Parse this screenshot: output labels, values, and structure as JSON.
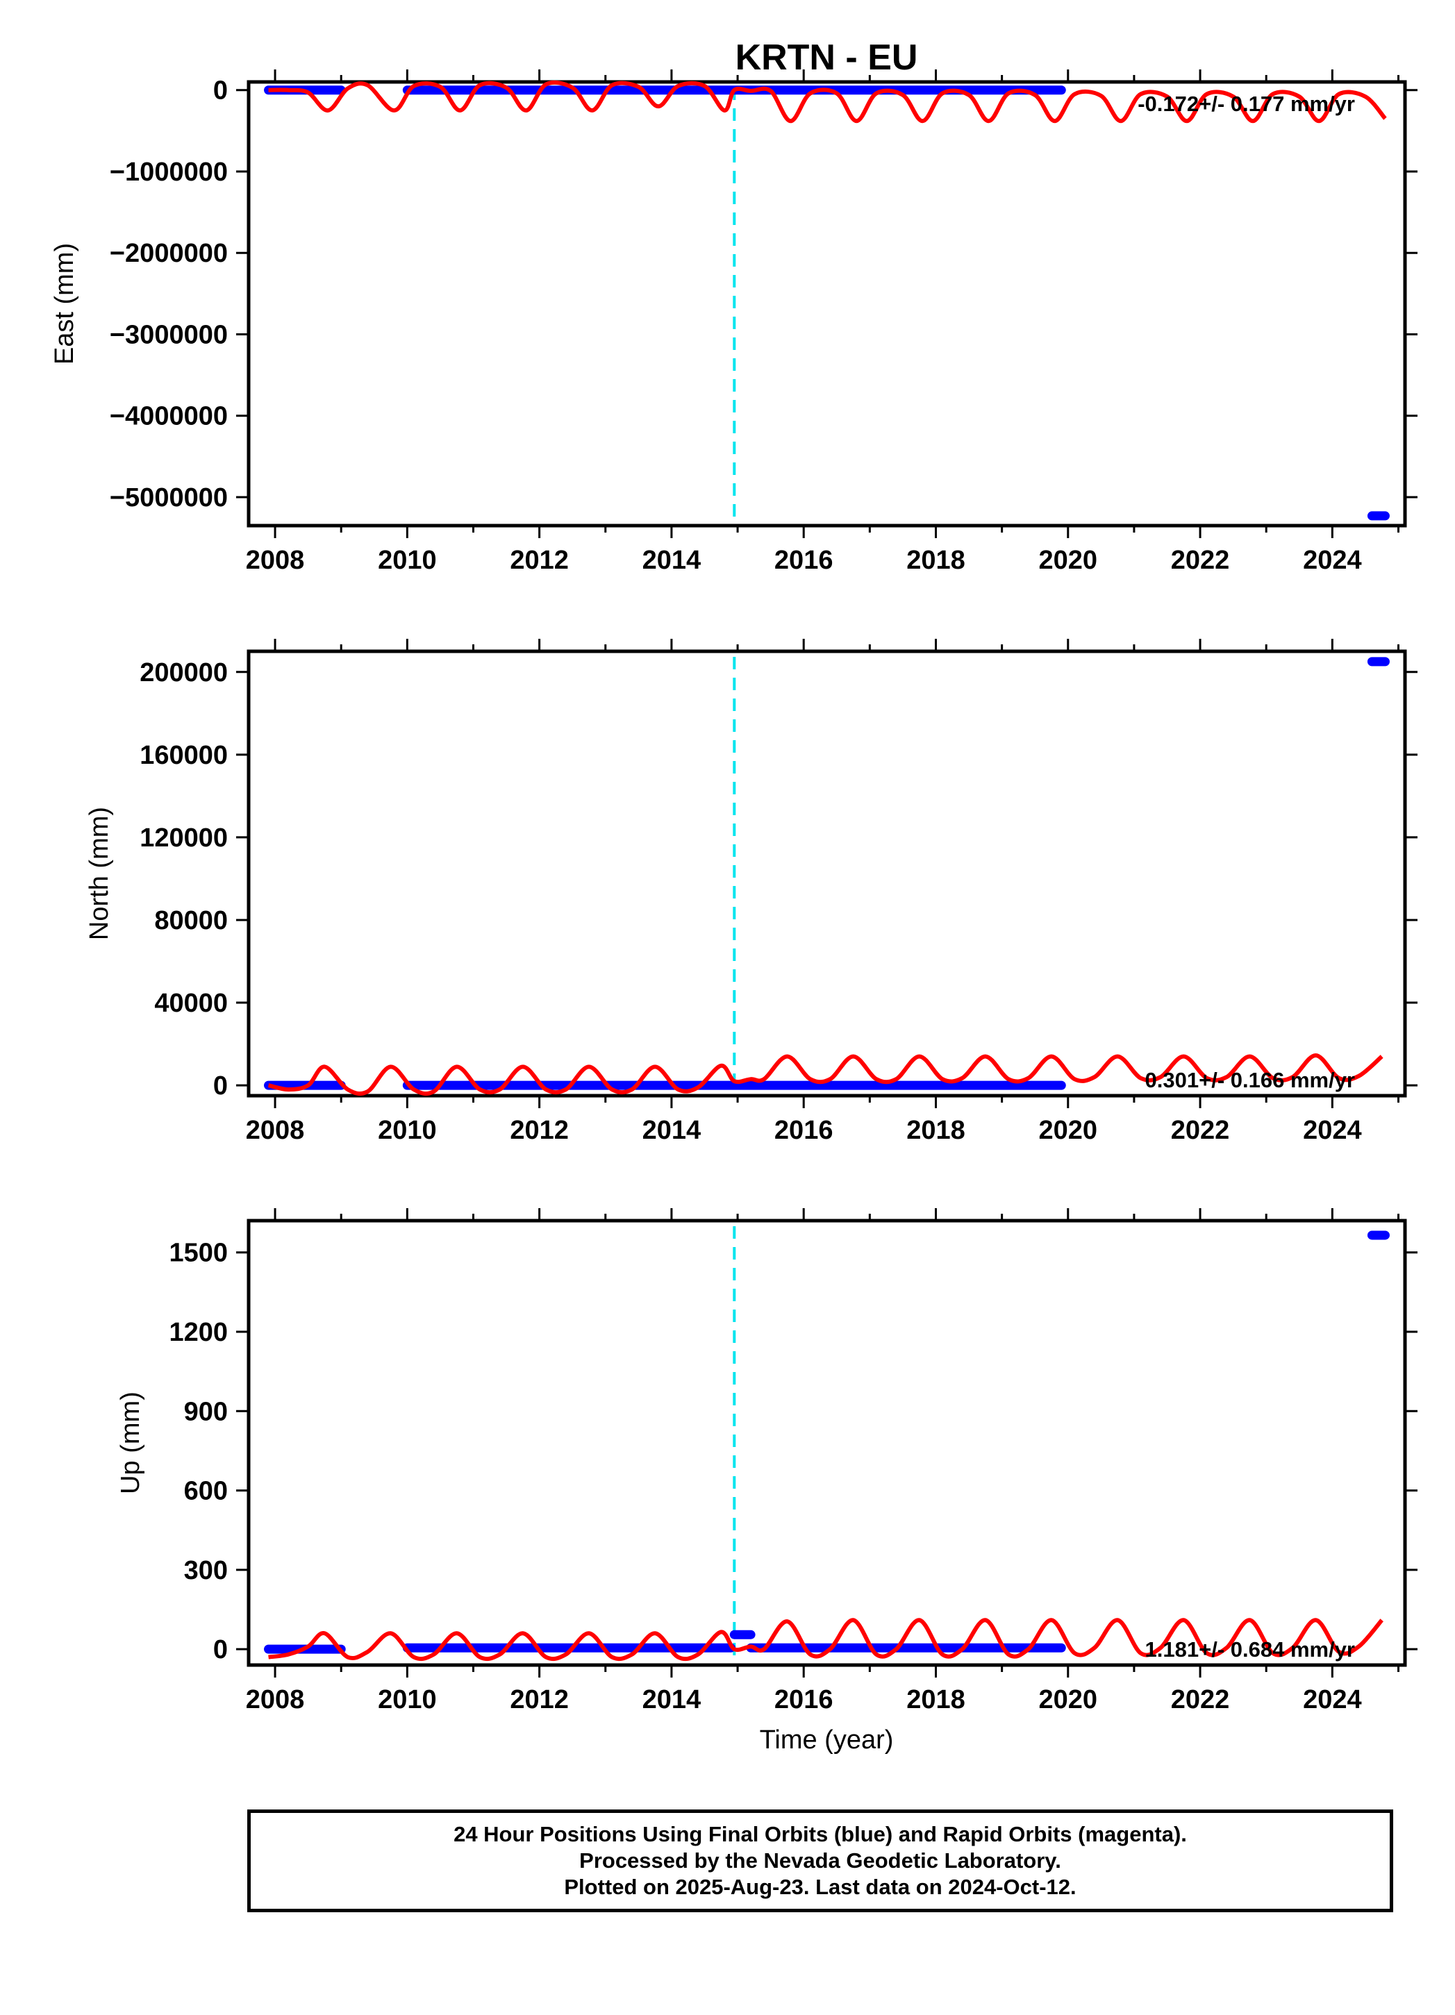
{
  "title": "KRTN - EU",
  "xlabel": "Time (year)",
  "colors": {
    "final": "#0000ff",
    "model": "#ff0000",
    "break": "#00e5ee",
    "frame": "#000000"
  },
  "footer": {
    "line1": "24 Hour Positions Using Final Orbits (blue) and Rapid Orbits (magenta).",
    "line2": "Processed by the Nevada Geodetic Laboratory.",
    "line3": "Plotted on 2025-Aug-23. Last data on 2024-Oct-12."
  },
  "chart_data": [
    {
      "type": "scatter",
      "name": "east",
      "ylabel": "East (mm)",
      "rate_label": "-0.172+/- 0.177 mm/yr",
      "xlim": [
        2007.6,
        2025.1
      ],
      "ylim": [
        -5350000,
        100000
      ],
      "yticks": [
        0,
        -1000000,
        -2000000,
        -3000000,
        -4000000,
        -5000000
      ],
      "ytick_labels": [
        "0",
        "−1000000",
        "−2000000",
        "−3000000",
        "−4000000",
        "−5000000"
      ],
      "xticks": [
        2008,
        2010,
        2012,
        2014,
        2016,
        2018,
        2020,
        2022,
        2024
      ],
      "break_year": 2014.95,
      "final_segments": [
        {
          "x0": 2007.9,
          "x1": 2009.0,
          "y": 0
        },
        {
          "x0": 2010.0,
          "x1": 2019.9,
          "y": 0
        },
        {
          "x0": 2024.6,
          "x1": 2024.8,
          "y": -5230000
        }
      ],
      "model_curve": [
        [
          2007.9,
          0
        ],
        [
          2008.2,
          0
        ],
        [
          2008.5,
          -30000
        ],
        [
          2008.8,
          -250000
        ],
        [
          2009.1,
          20000
        ],
        [
          2009.4,
          60000
        ],
        [
          2009.8,
          -250000
        ],
        [
          2010.1,
          50000
        ],
        [
          2010.5,
          40000
        ],
        [
          2010.8,
          -250000
        ],
        [
          2011.1,
          60000
        ],
        [
          2011.5,
          30000
        ],
        [
          2011.8,
          -250000
        ],
        [
          2012.1,
          70000
        ],
        [
          2012.5,
          30000
        ],
        [
          2012.8,
          -250000
        ],
        [
          2013.1,
          60000
        ],
        [
          2013.5,
          40000
        ],
        [
          2013.8,
          -200000
        ],
        [
          2014.1,
          50000
        ],
        [
          2014.5,
          50000
        ],
        [
          2014.8,
          -250000
        ],
        [
          2014.95,
          0
        ],
        [
          2015.2,
          -10000
        ],
        [
          2015.5,
          -10000
        ],
        [
          2015.8,
          -380000
        ],
        [
          2016.1,
          -40000
        ],
        [
          2016.5,
          -40000
        ],
        [
          2016.8,
          -380000
        ],
        [
          2017.1,
          -40000
        ],
        [
          2017.5,
          -60000
        ],
        [
          2017.8,
          -380000
        ],
        [
          2018.1,
          -40000
        ],
        [
          2018.5,
          -60000
        ],
        [
          2018.8,
          -380000
        ],
        [
          2019.1,
          -40000
        ],
        [
          2019.5,
          -60000
        ],
        [
          2019.8,
          -380000
        ],
        [
          2020.1,
          -50000
        ],
        [
          2020.5,
          -70000
        ],
        [
          2020.8,
          -380000
        ],
        [
          2021.1,
          -50000
        ],
        [
          2021.5,
          -80000
        ],
        [
          2021.8,
          -380000
        ],
        [
          2022.1,
          -50000
        ],
        [
          2022.5,
          -80000
        ],
        [
          2022.8,
          -380000
        ],
        [
          2023.1,
          -50000
        ],
        [
          2023.5,
          -80000
        ],
        [
          2023.8,
          -380000
        ],
        [
          2024.1,
          -50000
        ],
        [
          2024.5,
          -80000
        ],
        [
          2024.8,
          -350000
        ]
      ]
    },
    {
      "type": "scatter",
      "name": "north",
      "ylabel": "North (mm)",
      "rate_label": "0.301+/- 0.166 mm/yr",
      "xlim": [
        2007.6,
        2025.1
      ],
      "ylim": [
        -5000,
        210000
      ],
      "yticks": [
        0,
        40000,
        80000,
        120000,
        160000,
        200000
      ],
      "ytick_labels": [
        "0",
        "40000",
        "80000",
        "120000",
        "160000",
        "200000"
      ],
      "xticks": [
        2008,
        2010,
        2012,
        2014,
        2016,
        2018,
        2020,
        2022,
        2024
      ],
      "break_year": 2014.95,
      "final_segments": [
        {
          "x0": 2007.9,
          "x1": 2009.0,
          "y": 0
        },
        {
          "x0": 2010.0,
          "x1": 2019.9,
          "y": 0
        },
        {
          "x0": 2024.6,
          "x1": 2024.8,
          "y": 205000
        }
      ],
      "model_curve": [
        [
          2007.9,
          0
        ],
        [
          2008.2,
          -2000
        ],
        [
          2008.5,
          0
        ],
        [
          2008.75,
          9000
        ],
        [
          2009.1,
          -2000
        ],
        [
          2009.4,
          -3000
        ],
        [
          2009.75,
          9000
        ],
        [
          2010.1,
          -2000
        ],
        [
          2010.4,
          -3000
        ],
        [
          2010.75,
          9000
        ],
        [
          2011.1,
          -2000
        ],
        [
          2011.4,
          -2000
        ],
        [
          2011.75,
          9000
        ],
        [
          2012.1,
          -2000
        ],
        [
          2012.4,
          -2000
        ],
        [
          2012.75,
          9000
        ],
        [
          2013.1,
          -2000
        ],
        [
          2013.4,
          -2000
        ],
        [
          2013.75,
          9000
        ],
        [
          2014.1,
          -2000
        ],
        [
          2014.4,
          -1000
        ],
        [
          2014.75,
          9500
        ],
        [
          2014.95,
          2000
        ],
        [
          2015.2,
          3000
        ],
        [
          2015.4,
          3000
        ],
        [
          2015.75,
          14000
        ],
        [
          2016.1,
          3000
        ],
        [
          2016.4,
          3000
        ],
        [
          2016.75,
          14000
        ],
        [
          2017.1,
          3000
        ],
        [
          2017.4,
          3000
        ],
        [
          2017.75,
          14000
        ],
        [
          2018.1,
          3000
        ],
        [
          2018.4,
          3500
        ],
        [
          2018.75,
          14000
        ],
        [
          2019.1,
          3000
        ],
        [
          2019.4,
          3500
        ],
        [
          2019.75,
          14000
        ],
        [
          2020.1,
          3000
        ],
        [
          2020.4,
          4000
        ],
        [
          2020.75,
          14000
        ],
        [
          2021.1,
          3500
        ],
        [
          2021.4,
          4000
        ],
        [
          2021.75,
          14000
        ],
        [
          2022.1,
          3500
        ],
        [
          2022.4,
          4000
        ],
        [
          2022.75,
          14000
        ],
        [
          2023.1,
          3500
        ],
        [
          2023.4,
          4000
        ],
        [
          2023.75,
          14500
        ],
        [
          2024.1,
          3500
        ],
        [
          2024.4,
          4500
        ],
        [
          2024.75,
          14000
        ]
      ]
    },
    {
      "type": "scatter",
      "name": "up",
      "ylabel": "Up (mm)",
      "rate_label": "1.181+/- 0.684 mm/yr",
      "xlim": [
        2007.6,
        2025.1
      ],
      "ylim": [
        -60,
        1620
      ],
      "yticks": [
        0,
        300,
        600,
        900,
        1200,
        1500
      ],
      "ytick_labels": [
        "0",
        "300",
        "600",
        "900",
        "1200",
        "1500"
      ],
      "xticks": [
        2008,
        2010,
        2012,
        2014,
        2016,
        2018,
        2020,
        2022,
        2024
      ],
      "break_year": 2014.95,
      "final_segments": [
        {
          "x0": 2007.9,
          "x1": 2009.0,
          "y": 0
        },
        {
          "x0": 2010.0,
          "x1": 2014.9,
          "y": 5
        },
        {
          "x0": 2014.95,
          "x1": 2015.2,
          "y": 55
        },
        {
          "x0": 2015.2,
          "x1": 2019.9,
          "y": 5
        },
        {
          "x0": 2024.6,
          "x1": 2024.8,
          "y": 1565
        }
      ],
      "model_curve": [
        [
          2007.9,
          -30
        ],
        [
          2008.2,
          -20
        ],
        [
          2008.5,
          10
        ],
        [
          2008.75,
          60
        ],
        [
          2009.1,
          -30
        ],
        [
          2009.4,
          -10
        ],
        [
          2009.75,
          60
        ],
        [
          2010.1,
          -30
        ],
        [
          2010.4,
          -20
        ],
        [
          2010.75,
          60
        ],
        [
          2011.1,
          -30
        ],
        [
          2011.4,
          -20
        ],
        [
          2011.75,
          60
        ],
        [
          2012.1,
          -30
        ],
        [
          2012.4,
          -20
        ],
        [
          2012.75,
          60
        ],
        [
          2013.1,
          -30
        ],
        [
          2013.4,
          -20
        ],
        [
          2013.75,
          60
        ],
        [
          2014.1,
          -30
        ],
        [
          2014.4,
          -20
        ],
        [
          2014.75,
          65
        ],
        [
          2014.95,
          0
        ],
        [
          2015.2,
          10
        ],
        [
          2015.4,
          0
        ],
        [
          2015.75,
          105
        ],
        [
          2016.1,
          -20
        ],
        [
          2016.4,
          0
        ],
        [
          2016.75,
          110
        ],
        [
          2017.1,
          -20
        ],
        [
          2017.4,
          0
        ],
        [
          2017.75,
          110
        ],
        [
          2018.1,
          -20
        ],
        [
          2018.4,
          0
        ],
        [
          2018.75,
          110
        ],
        [
          2019.1,
          -20
        ],
        [
          2019.4,
          0
        ],
        [
          2019.75,
          110
        ],
        [
          2020.1,
          -15
        ],
        [
          2020.4,
          5
        ],
        [
          2020.75,
          110
        ],
        [
          2021.1,
          -15
        ],
        [
          2021.4,
          5
        ],
        [
          2021.75,
          110
        ],
        [
          2022.1,
          -15
        ],
        [
          2022.4,
          5
        ],
        [
          2022.75,
          110
        ],
        [
          2023.1,
          -15
        ],
        [
          2023.4,
          5
        ],
        [
          2023.75,
          110
        ],
        [
          2024.1,
          -10
        ],
        [
          2024.4,
          10
        ],
        [
          2024.75,
          110
        ]
      ]
    }
  ]
}
